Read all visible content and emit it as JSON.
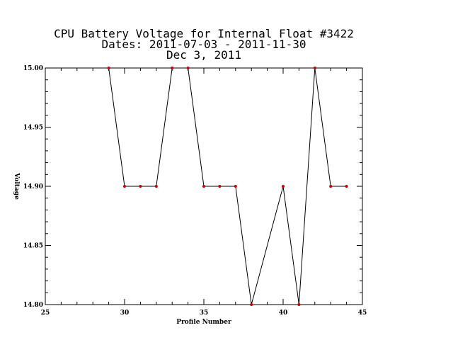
{
  "chart_data": {
    "type": "line",
    "title_lines": [
      "CPU Battery Voltage for Internal Float #3422",
      "Dates:  2011-07-03 -  2011-11-30",
      "Dec  3, 2011"
    ],
    "xlabel": "Profile Number",
    "ylabel": "Voltage",
    "xlim": [
      25,
      45
    ],
    "ylim": [
      14.8,
      15.0
    ],
    "xticks": [
      25,
      30,
      35,
      40,
      45
    ],
    "xtick_labels": [
      "25",
      "30",
      "35",
      "40",
      "45"
    ],
    "yticks": [
      14.8,
      14.85,
      14.9,
      14.95,
      15.0
    ],
    "ytick_labels": [
      "14.80",
      "14.85",
      "14.90",
      "14.95",
      "15.00"
    ],
    "x_minor_step": 1,
    "y_minor_step": 0.01,
    "grid": false,
    "line_color": "#000000",
    "marker_color": "#cc0000",
    "series": [
      {
        "x": [
          29,
          30,
          31,
          32,
          33,
          34,
          35,
          36,
          37,
          38,
          40,
          41,
          42,
          43,
          44
        ],
        "y": [
          15.0,
          14.9,
          14.9,
          14.9,
          15.0,
          15.0,
          14.9,
          14.9,
          14.9,
          14.8,
          14.9,
          14.8,
          15.0,
          14.9,
          14.9
        ]
      }
    ]
  }
}
